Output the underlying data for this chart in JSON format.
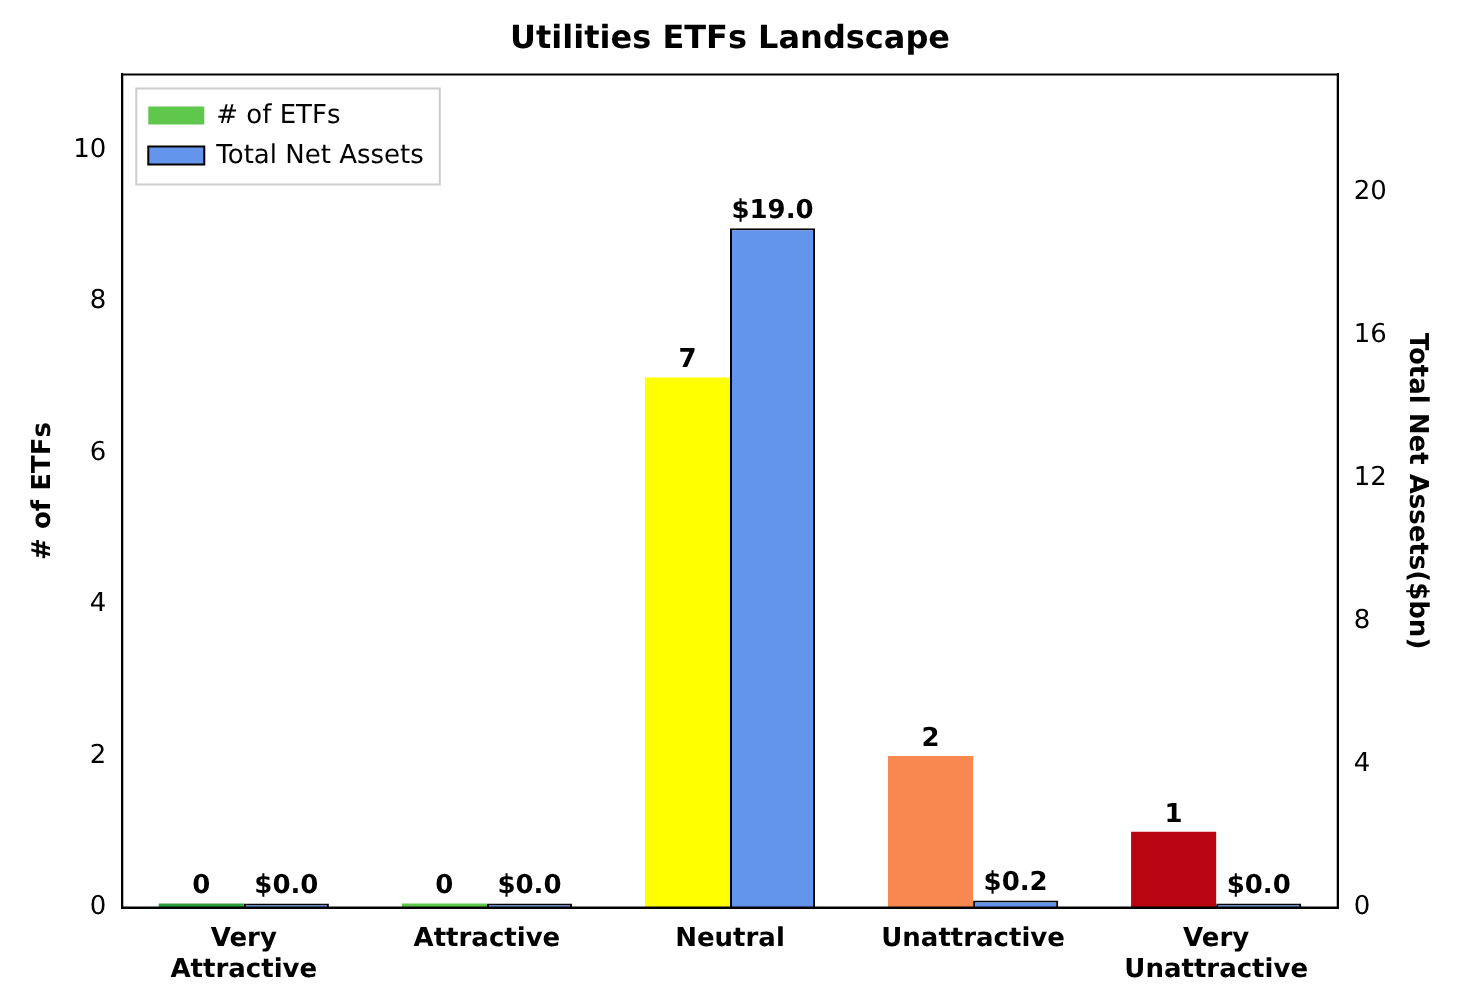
{
  "chart_data": {
    "type": "bar",
    "title": "Utilities ETFs Landscape",
    "ylabel": "# of ETFs",
    "y2label": "Total Net Assets($bn)",
    "categories": [
      "Very Attractive",
      "Attractive",
      "Neutral",
      "Unattractive",
      "Very Unattractive"
    ],
    "series": [
      {
        "name": "# of ETFs",
        "color": "#5fc84c",
        "colors": [
          "#2e9e3a",
          "#5fc84c",
          "#ffff00",
          "#f98850",
          "#b90412"
        ],
        "values": [
          0,
          0,
          7,
          2,
          1
        ],
        "value_labels": [
          "0",
          "0",
          "7",
          "2",
          "1"
        ]
      },
      {
        "name": "Total Net Assets",
        "color": "#6495ed",
        "axis": "y2",
        "values": [
          0.0,
          0.0,
          19.0,
          0.2,
          0.0
        ],
        "value_labels": [
          "$0.0",
          "$0.0",
          "$19.0",
          "$0.2",
          "$0.0"
        ]
      }
    ],
    "ylim": [
      0,
      11
    ],
    "yticks": [
      0,
      2,
      4,
      6,
      8,
      10
    ],
    "y2lim": [
      0,
      23.3
    ],
    "y2ticks": [
      0,
      4,
      8,
      12,
      16,
      20
    ],
    "legend": "top left",
    "grid": false
  }
}
